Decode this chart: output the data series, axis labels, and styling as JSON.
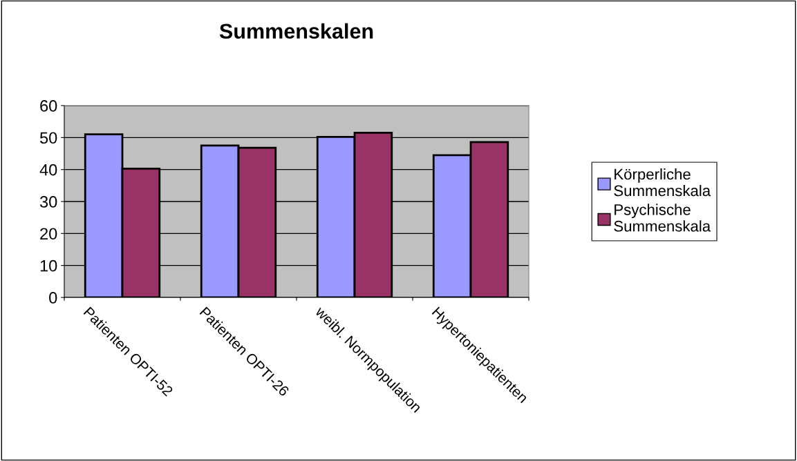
{
  "chart_data": {
    "type": "bar",
    "title": "Summenskalen",
    "categories": [
      "Patienten OPTI-52",
      "Patienten OPTI-26",
      "weibl. Normpopulation",
      "Hypertoniepatienten"
    ],
    "series": [
      {
        "name": "Körperliche\nSummenskala",
        "color": "#9999ff",
        "values": [
          51.0,
          47.5,
          50.2,
          44.5
        ]
      },
      {
        "name": "Psychische\nSummenskala",
        "color": "#993366",
        "values": [
          40.3,
          46.8,
          51.5,
          48.6
        ]
      }
    ],
    "ylim": [
      0,
      60
    ],
    "yticks": [
      0,
      10,
      20,
      30,
      40,
      50,
      60
    ],
    "grid": "y",
    "legend": "right"
  }
}
